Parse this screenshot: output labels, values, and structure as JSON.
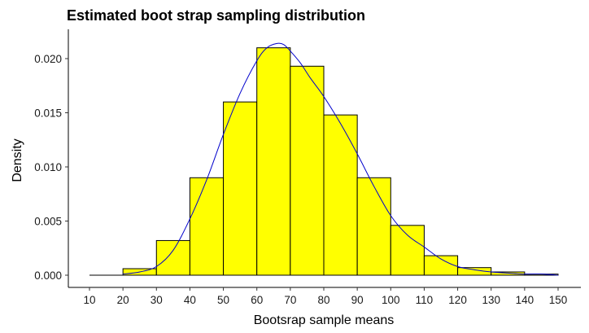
{
  "chart_data": {
    "type": "histogram",
    "title": "Estimated boot strap sampling distribution",
    "xlabel": "Bootsrap sample means",
    "ylabel": "Density",
    "xlim": [
      10,
      150
    ],
    "ylim": [
      0,
      0.0225
    ],
    "x_ticks": [
      10,
      20,
      30,
      40,
      50,
      60,
      70,
      80,
      90,
      100,
      110,
      120,
      130,
      140,
      150
    ],
    "y_ticks": [
      0.0,
      0.005,
      0.01,
      0.015,
      0.02
    ],
    "y_tick_labels": [
      "0.000",
      "0.005",
      "0.010",
      "0.015",
      "0.020"
    ],
    "bar_fill": "#ffff00",
    "bar_outline": "#000000",
    "density_color": "#0000cc",
    "grid": false,
    "bins": [
      {
        "x0": 10,
        "x1": 20,
        "density": 0.0
      },
      {
        "x0": 20,
        "x1": 30,
        "density": 0.0006
      },
      {
        "x0": 30,
        "x1": 40,
        "density": 0.0032
      },
      {
        "x0": 40,
        "x1": 50,
        "density": 0.009
      },
      {
        "x0": 50,
        "x1": 60,
        "density": 0.016
      },
      {
        "x0": 60,
        "x1": 70,
        "density": 0.021
      },
      {
        "x0": 70,
        "x1": 80,
        "density": 0.0193
      },
      {
        "x0": 80,
        "x1": 90,
        "density": 0.0148
      },
      {
        "x0": 90,
        "x1": 100,
        "density": 0.009
      },
      {
        "x0": 100,
        "x1": 110,
        "density": 0.0046
      },
      {
        "x0": 110,
        "x1": 120,
        "density": 0.0018
      },
      {
        "x0": 120,
        "x1": 130,
        "density": 0.0007
      },
      {
        "x0": 130,
        "x1": 140,
        "density": 0.0003
      },
      {
        "x0": 140,
        "x1": 150,
        "density": 0.0001
      }
    ],
    "density_curve": {
      "x": [
        20,
        25,
        30,
        35,
        40,
        45,
        50,
        55,
        60,
        63,
        66,
        68,
        70,
        73,
        76,
        80,
        85,
        90,
        95,
        100,
        105,
        110,
        115,
        120,
        125,
        130,
        135,
        140,
        145,
        150
      ],
      "y": [
        0.0001,
        0.0003,
        0.0008,
        0.0023,
        0.0052,
        0.0088,
        0.013,
        0.0168,
        0.0198,
        0.021,
        0.0214,
        0.0213,
        0.0207,
        0.0196,
        0.0182,
        0.0165,
        0.014,
        0.0112,
        0.0082,
        0.0055,
        0.0037,
        0.0026,
        0.0015,
        0.0008,
        0.0005,
        0.0003,
        0.0002,
        0.0001,
        0.0001,
        0.0
      ]
    }
  }
}
